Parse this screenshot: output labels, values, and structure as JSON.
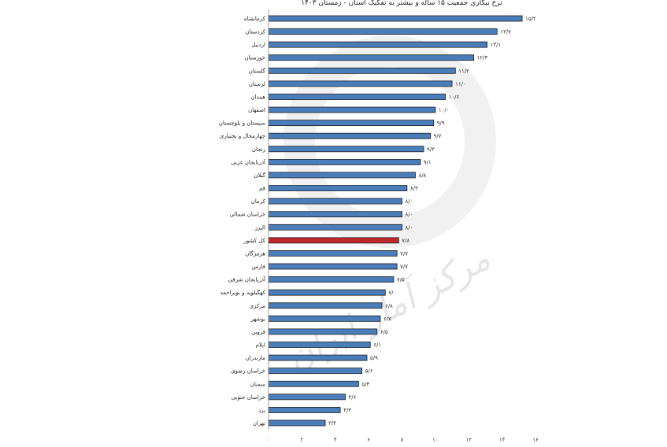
{
  "chart_data": {
    "type": "bar",
    "orientation": "horizontal",
    "title": "نرخ بیکاری جمعیت ۱۵ ساله و بیشتر به تفکیک استان - زمستان ۱۴۰۳",
    "categories": [
      "کرمانشاه",
      "کردستان",
      "اردبیل",
      "خوزستان",
      "گلستان",
      "لرستان",
      "همدان",
      "اصفهان",
      "سیستان و بلوچستان",
      "چهارمحال و بختیاری",
      "زنجان",
      "آذربایجان غربی",
      "گیلان",
      "قم",
      "کرمان",
      "خراسان شمالی",
      "البرز",
      "کل کشور",
      "هرمزگان",
      "فارس",
      "آذربایجان شرقی",
      "کهگیلویه و بویراحمد",
      "مرکزی",
      "بوشهر",
      "قزوین",
      "ایلام",
      "مازندران",
      "خراسان رضوی",
      "سمنان",
      "خراسان جنوبی",
      "یزد",
      "تهران"
    ],
    "values": [
      15.2,
      13.7,
      13.1,
      12.3,
      11.2,
      11.0,
      10.6,
      10.0,
      9.9,
      9.7,
      9.3,
      9.1,
      8.8,
      8.3,
      8.0,
      8.0,
      8.0,
      7.8,
      7.7,
      7.7,
      7.5,
      7.0,
      6.8,
      6.7,
      6.5,
      6.1,
      5.9,
      5.6,
      5.4,
      4.6,
      4.3,
      3.4
    ],
    "value_labels": [
      "۱۵/۲",
      "۱۳/۷",
      "۱۳/۱",
      "۱۲/۳",
      "۱۱/۲",
      "۱۱/۰",
      "۱۰/۶",
      "۱۰/۰",
      "۹/۹",
      "۹/۷",
      "۹/۳",
      "۹/۱",
      "۸/۸",
      "۸/۳",
      "۸/۰",
      "۸/۰",
      "۸/۰",
      "۷/۸",
      "۷/۷",
      "۷/۷",
      "۷/۵",
      "۷/۰",
      "۶/۸",
      "۶/۷",
      "۶/۵",
      "۶/۱",
      "۵/۹",
      "۵/۶",
      "۵/۴",
      "۴/۶",
      "۴/۳",
      "۳/۴"
    ],
    "highlight_category": "کل کشور",
    "xlim": [
      0,
      16
    ],
    "x_ticks": [
      0,
      2,
      4,
      6,
      8,
      10,
      12,
      14,
      16
    ],
    "x_tick_labels": [
      "۰",
      "۲",
      "۴",
      "۶",
      "۸",
      "۱۰",
      "۱۲",
      "۱۴",
      "۱۶"
    ],
    "xlabel": "",
    "ylabel": "",
    "grid": false,
    "colors": {
      "bar": "#4a7ebb",
      "bar_edge": "#1f1f1f",
      "highlight": "#c0282d"
    }
  },
  "watermark": "مرکز آمار ایران"
}
